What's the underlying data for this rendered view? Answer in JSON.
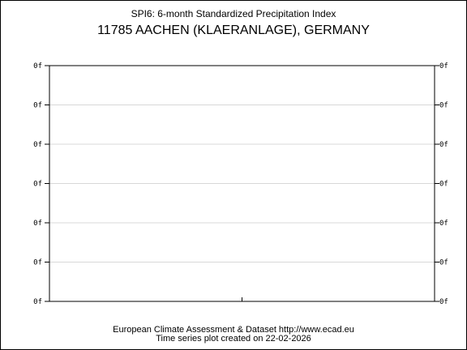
{
  "chart_data": {
    "type": "line",
    "title": "SPI6: 6-month Standardized Precipitation Index",
    "subtitle": "11785 AACHEN (KLAERANLAGE), GERMANY",
    "xlabel": "",
    "ylabel": "",
    "y_tick_labels": [
      "0f",
      "0f",
      "0f",
      "0f",
      "0f",
      "0f",
      "0f"
    ],
    "series": [],
    "grid": true,
    "legend": "none"
  },
  "footer": {
    "line1": "European Climate Assessment & Dataset  http://www.ecad.eu",
    "line2": "Time series plot created on 22-02-2026"
  },
  "colors": {
    "background": "#ffffff",
    "axis": "#000000",
    "grid": "#d8d8d8"
  }
}
